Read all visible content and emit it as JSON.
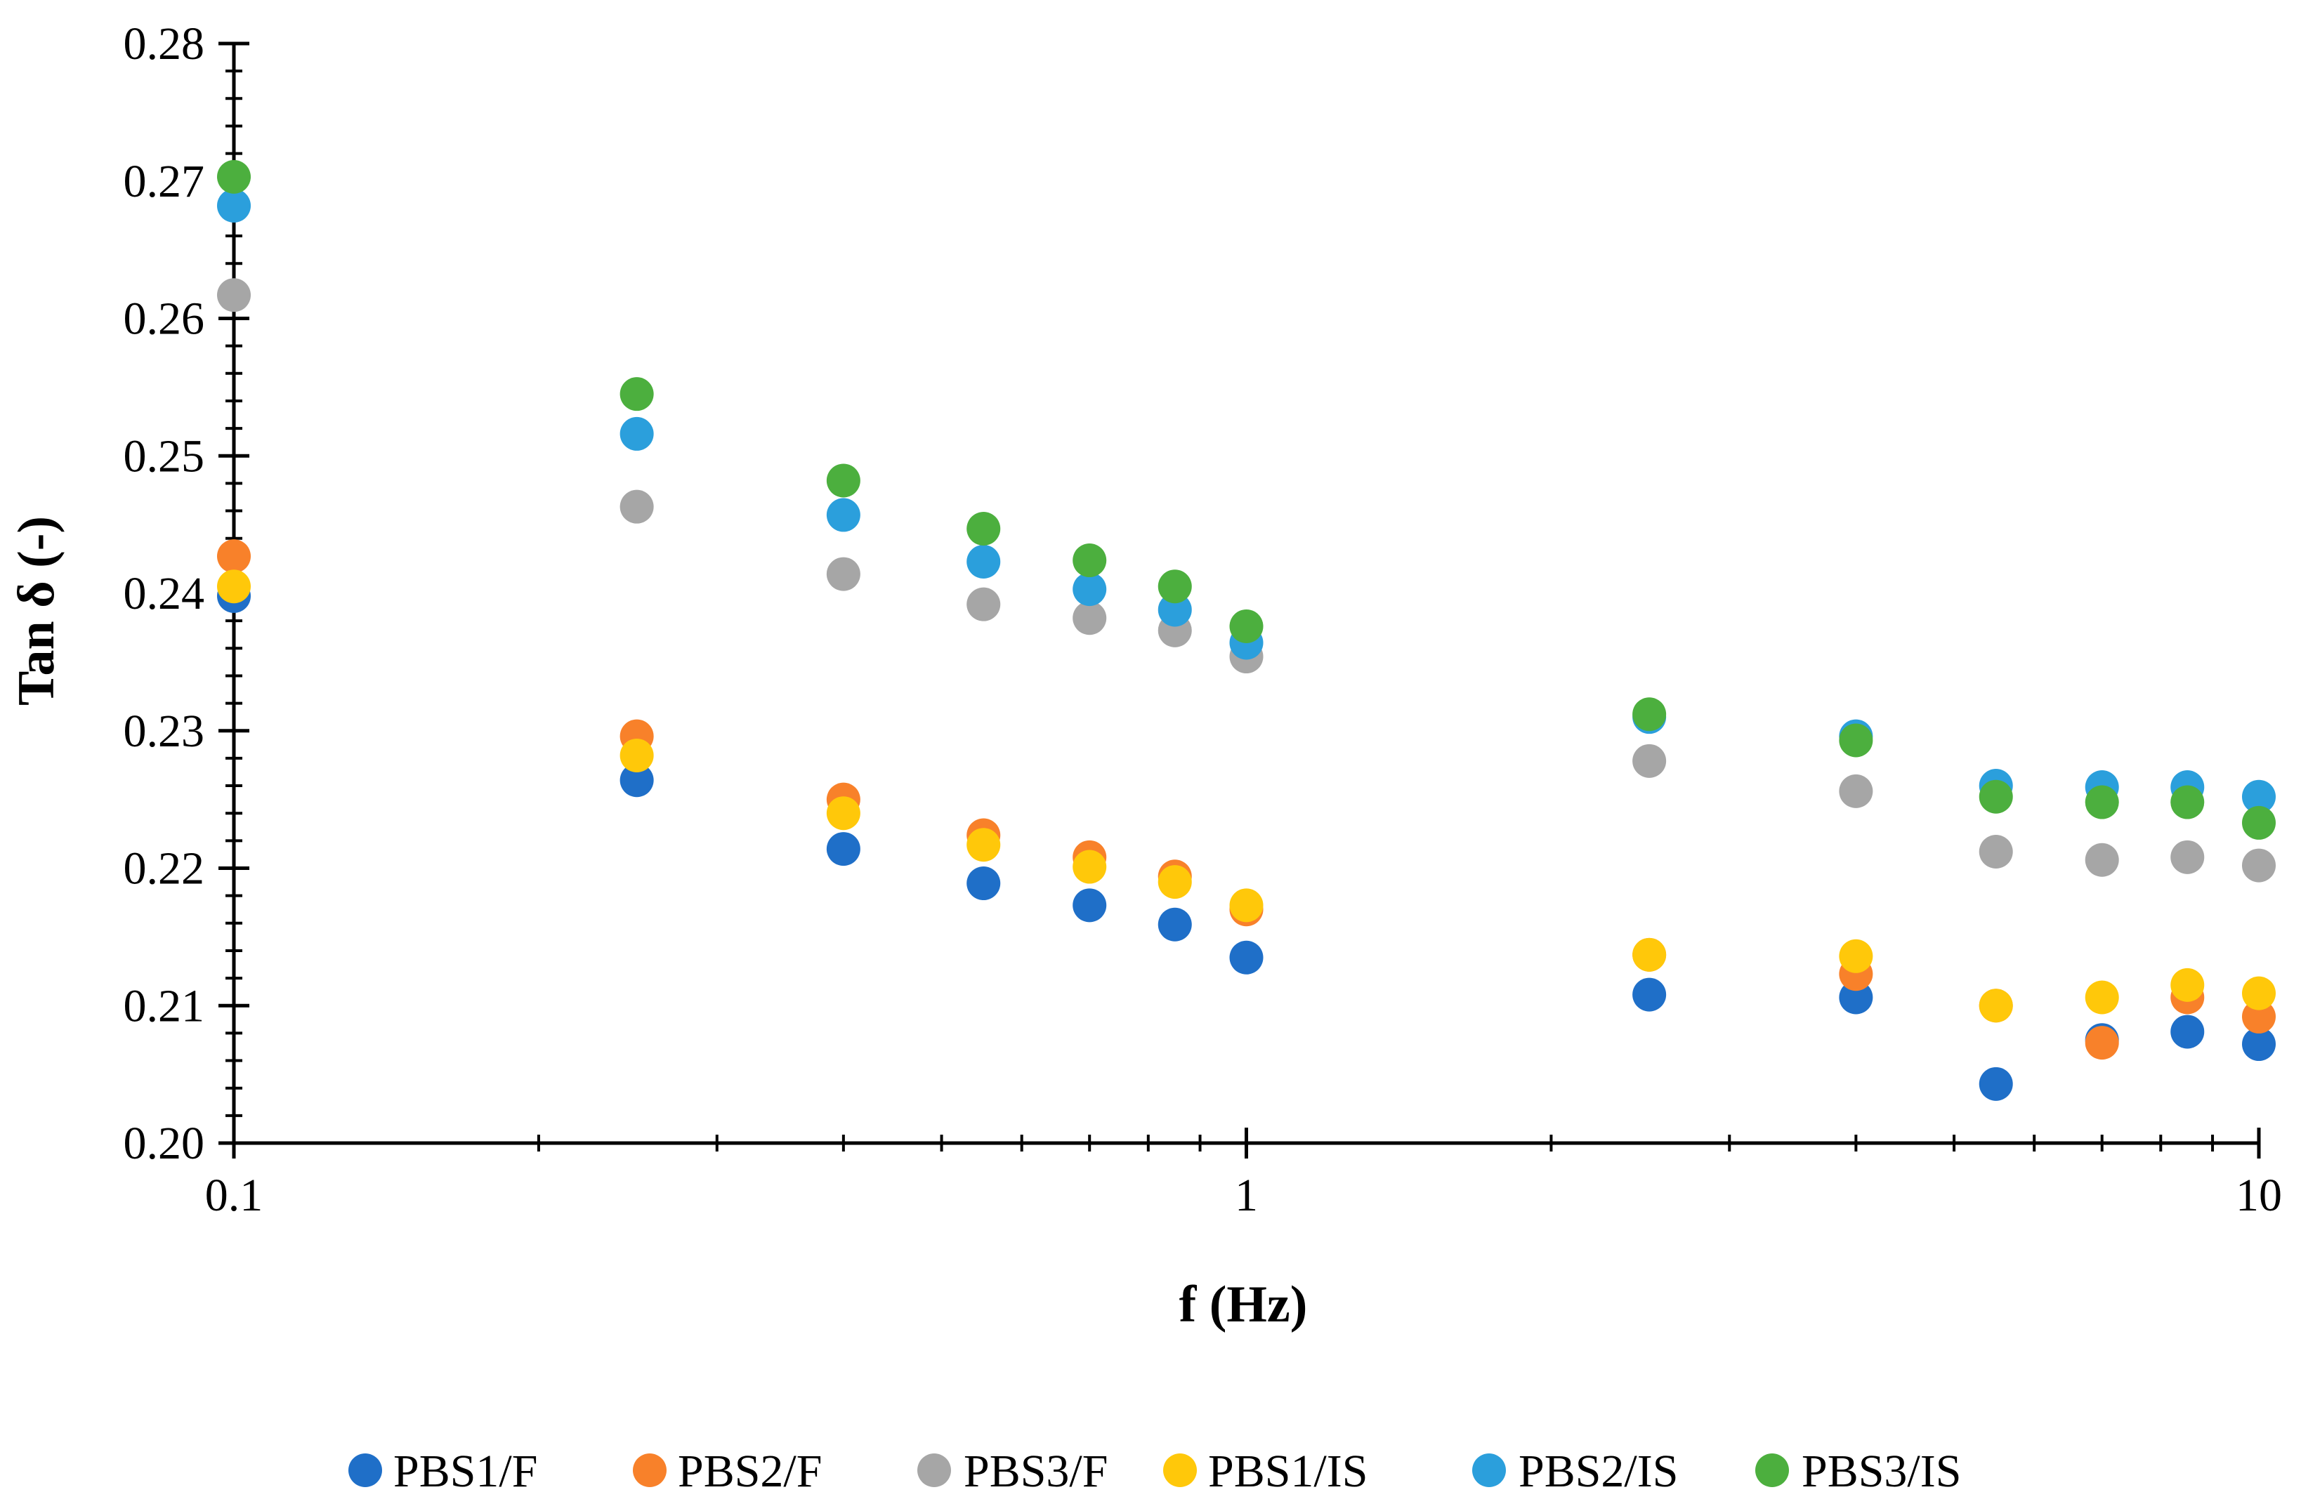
{
  "chart_data": {
    "type": "scatter",
    "title": "",
    "xlabel": "f (Hz)",
    "ylabel": "Tan δ (-)",
    "xscale": "log",
    "xlim": [
      0.1,
      10
    ],
    "ylim": [
      0.2,
      0.28
    ],
    "x_ticks": [
      0.1,
      1,
      10
    ],
    "x_tick_labels": [
      "0.1",
      "1",
      "10"
    ],
    "y_ticks": [
      0.2,
      0.21,
      0.22,
      0.23,
      0.24,
      0.25,
      0.26,
      0.27,
      0.28
    ],
    "y_tick_labels": [
      "0.20",
      "0.21",
      "0.22",
      "0.23",
      "0.24",
      "0.25",
      "0.26",
      "0.27",
      "0.28"
    ],
    "grid": false,
    "legend_position": "bottom",
    "x": [
      0.1,
      0.25,
      0.4,
      0.55,
      0.7,
      0.85,
      1,
      2.5,
      4,
      5.5,
      7,
      8.5,
      10
    ],
    "series": [
      {
        "name": "PBS1/F",
        "color": "#1f6fc8",
        "values": [
          0.2398,
          0.2264,
          0.2214,
          0.2189,
          0.2173,
          0.2159,
          0.2135,
          0.2108,
          0.2106,
          0.2043,
          0.2075,
          0.2081,
          0.2072
        ]
      },
      {
        "name": "PBS2/F",
        "color": "#f8812a",
        "values": [
          0.2427,
          0.2296,
          0.225,
          0.2224,
          0.2208,
          0.2194,
          0.217,
          0.2137,
          0.2123,
          0.21,
          0.2073,
          0.2106,
          0.2092
        ]
      },
      {
        "name": "PBS3/F",
        "color": "#a6a6a6",
        "values": [
          0.2617,
          0.2463,
          0.2414,
          0.2392,
          0.2382,
          0.2373,
          0.2354,
          0.2278,
          0.2256,
          0.2212,
          0.2206,
          0.2208,
          0.2202
        ]
      },
      {
        "name": "PBS1/IS",
        "color": "#ffc80a",
        "values": [
          0.2405,
          0.2282,
          0.224,
          0.2217,
          0.2201,
          0.219,
          0.2173,
          0.2137,
          0.2136,
          0.21,
          0.2106,
          0.2115,
          0.2109
        ]
      },
      {
        "name": "PBS2/IS",
        "color": "#2b9fdc",
        "values": [
          0.2682,
          0.2516,
          0.2457,
          0.2423,
          0.2403,
          0.2388,
          0.2364,
          0.231,
          0.2296,
          0.226,
          0.2259,
          0.2259,
          0.2252
        ]
      },
      {
        "name": "PBS3/IS",
        "color": "#4caf3e",
        "values": [
          0.2703,
          0.2545,
          0.2482,
          0.2447,
          0.2424,
          0.2405,
          0.2376,
          0.2312,
          0.2293,
          0.2252,
          0.2248,
          0.2248,
          0.2233
        ]
      }
    ]
  }
}
